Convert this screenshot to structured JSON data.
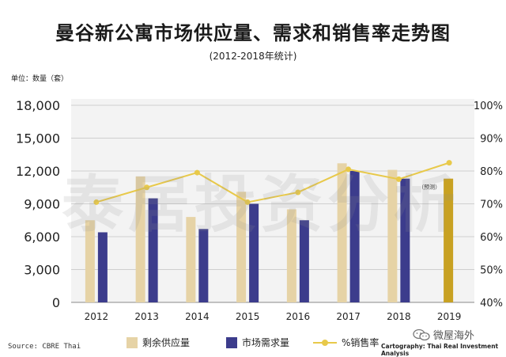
{
  "title": "曼谷新公寓市场供应量、需求和销售率走势图",
  "subtitle": "(2012-2018年统计)",
  "unit_label": "单位：数量（套）",
  "source": "Source: CBRE Thai",
  "credit": "Cartography: Thai Real Investment Analysis",
  "wechat_label": "微屋海外",
  "watermark": "泰居投资分析",
  "chart_data": {
    "type": "bar",
    "categories": [
      "2012",
      "2013",
      "2014",
      "2015",
      "2016",
      "2017",
      "2018",
      "2019"
    ],
    "series": [
      {
        "name": "剩余供应量",
        "type": "bar",
        "axis": "left",
        "values": [
          7500,
          11500,
          7800,
          10100,
          8500,
          12700,
          12100,
          null
        ],
        "color": "#e6d3a6"
      },
      {
        "name": "市场需求量",
        "type": "bar",
        "axis": "left",
        "values": [
          6400,
          9500,
          6700,
          9000,
          7500,
          12000,
          11300,
          11300
        ],
        "color": "#3c3c8c"
      },
      {
        "name": "%销售率",
        "type": "line",
        "axis": "right",
        "values": [
          70.5,
          75,
          79.5,
          70.5,
          73.5,
          80.5,
          77.5,
          82.5
        ],
        "color": "#e8c94a"
      }
    ],
    "forecast_color": "#c8a122",
    "forecast_label": "（预测）",
    "forecast_category": "2019",
    "ylim_left": [
      0,
      18000
    ],
    "yticks_left": [
      0,
      3000,
      6000,
      9000,
      12000,
      15000,
      18000
    ],
    "ytick_labels_left": [
      "0",
      "3,000",
      "6,000",
      "9,000",
      "12,000",
      "15,000",
      "18,000"
    ],
    "ylim_right": [
      40,
      100
    ],
    "yticks_right": [
      40,
      50,
      60,
      70,
      80,
      90,
      100
    ],
    "ytick_labels_right": [
      "40%",
      "50%",
      "60%",
      "70%",
      "80%",
      "90%",
      "100%"
    ],
    "grid": true,
    "legend_position": "bottom"
  }
}
